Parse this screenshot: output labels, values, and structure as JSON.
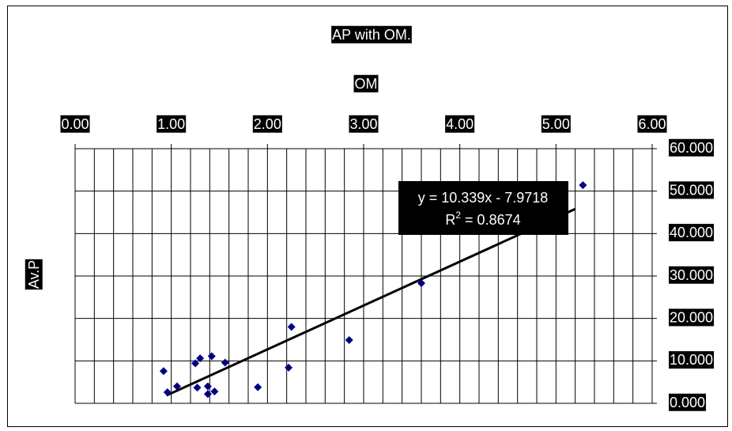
{
  "chart_data": {
    "type": "scatter",
    "title": "AP with OM.",
    "xlabel": "OM",
    "ylabel": "Av.P",
    "xlim": [
      0,
      6
    ],
    "ylim": [
      0,
      60
    ],
    "x_ticks": [
      "0.00",
      "1.00",
      "2.00",
      "3.00",
      "4.00",
      "5.00",
      "6.00"
    ],
    "y_ticks": [
      "0.000",
      "10.000",
      "20.000",
      "30.000",
      "40.000",
      "50.000",
      "60.000"
    ],
    "x_axis_position": "top",
    "y_axis_position": "right",
    "grid": true,
    "marker": "diamond",
    "marker_color": "#000080",
    "series": [
      {
        "points": [
          {
            "x": 0.92,
            "y": 7.6
          },
          {
            "x": 0.96,
            "y": 2.6
          },
          {
            "x": 1.06,
            "y": 4.0
          },
          {
            "x": 1.25,
            "y": 9.4
          },
          {
            "x": 1.3,
            "y": 10.6
          },
          {
            "x": 1.27,
            "y": 3.7
          },
          {
            "x": 1.38,
            "y": 4.0
          },
          {
            "x": 1.38,
            "y": 2.2
          },
          {
            "x": 1.42,
            "y": 11.1
          },
          {
            "x": 1.45,
            "y": 2.8
          },
          {
            "x": 1.56,
            "y": 9.6
          },
          {
            "x": 1.9,
            "y": 3.8
          },
          {
            "x": 2.22,
            "y": 8.4
          },
          {
            "x": 2.25,
            "y": 18.0
          },
          {
            "x": 2.85,
            "y": 14.9
          },
          {
            "x": 3.6,
            "y": 28.3
          },
          {
            "x": 5.28,
            "y": 51.4
          }
        ]
      }
    ],
    "trendline": {
      "type": "linear",
      "slope": 10.339,
      "intercept": -7.9718,
      "x_range": [
        0.95,
        5.2
      ],
      "equation_text": "y = 10.339x - 7.9718",
      "r2_label": "R",
      "r2_superscript": "2",
      "r2_value_text": " = 0.8674"
    }
  }
}
